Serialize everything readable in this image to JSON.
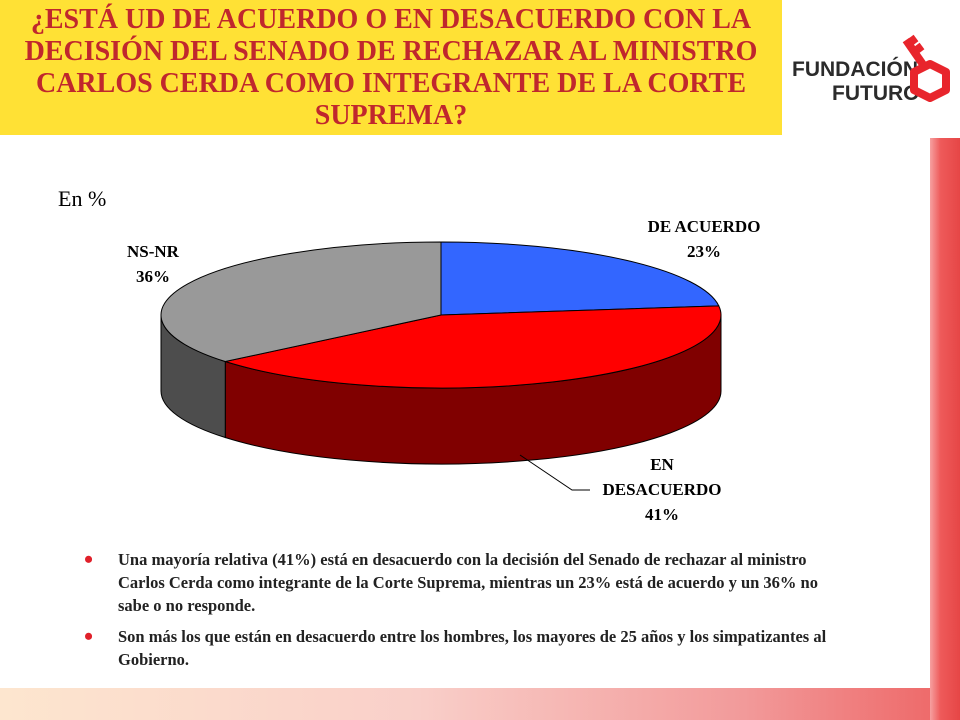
{
  "slide": {
    "title": "¿ESTÁ UD DE ACUERDO O EN DESACUERDO CON LA DECISIÓN DEL SENADO DE RECHAZAR AL MINISTRO CARLOS CERDA COMO INTEGRANTE DE LA CORTE SUPREMA?",
    "subtitle": "En %",
    "logo": {
      "line1": "FUNDACIÓN",
      "line2": "FUTURO",
      "icon": "key-icon"
    },
    "bullets": [
      "Una mayoría relativa (41%) está en desacuerdo con la decisión del Senado de rechazar al ministro Carlos Cerda como integrante de la Corte Suprema, mientras un 23% está de acuerdo y un 36% no sabe o no responde.",
      "Son más los que están en desacuerdo entre los hombres, los mayores de 25 años y los simpatizantes al Gobierno."
    ]
  },
  "colors": {
    "title_bg": "#FFE135",
    "title_text": "#C0272D",
    "bullet": "#E0202A",
    "logo_red": "#E8252C",
    "logo_dark": "#2b2b2b"
  },
  "chart_data": {
    "type": "pie",
    "style": "3d",
    "title": "",
    "unit": "%",
    "slices": [
      {
        "label_lines": [
          "DE ACUERDO"
        ],
        "value": 23,
        "value_label": "23%",
        "top_color": "#3366FF",
        "side_color": "#1a3388"
      },
      {
        "label_lines": [
          "EN",
          "DESACUERDO"
        ],
        "value": 41,
        "value_label": "41%",
        "top_color": "#FF0000",
        "side_color": "#800000"
      },
      {
        "label_lines": [
          "NS-NR"
        ],
        "value": 36,
        "value_label": "36%",
        "top_color": "#999999",
        "side_color": "#4d4d4d"
      }
    ]
  }
}
